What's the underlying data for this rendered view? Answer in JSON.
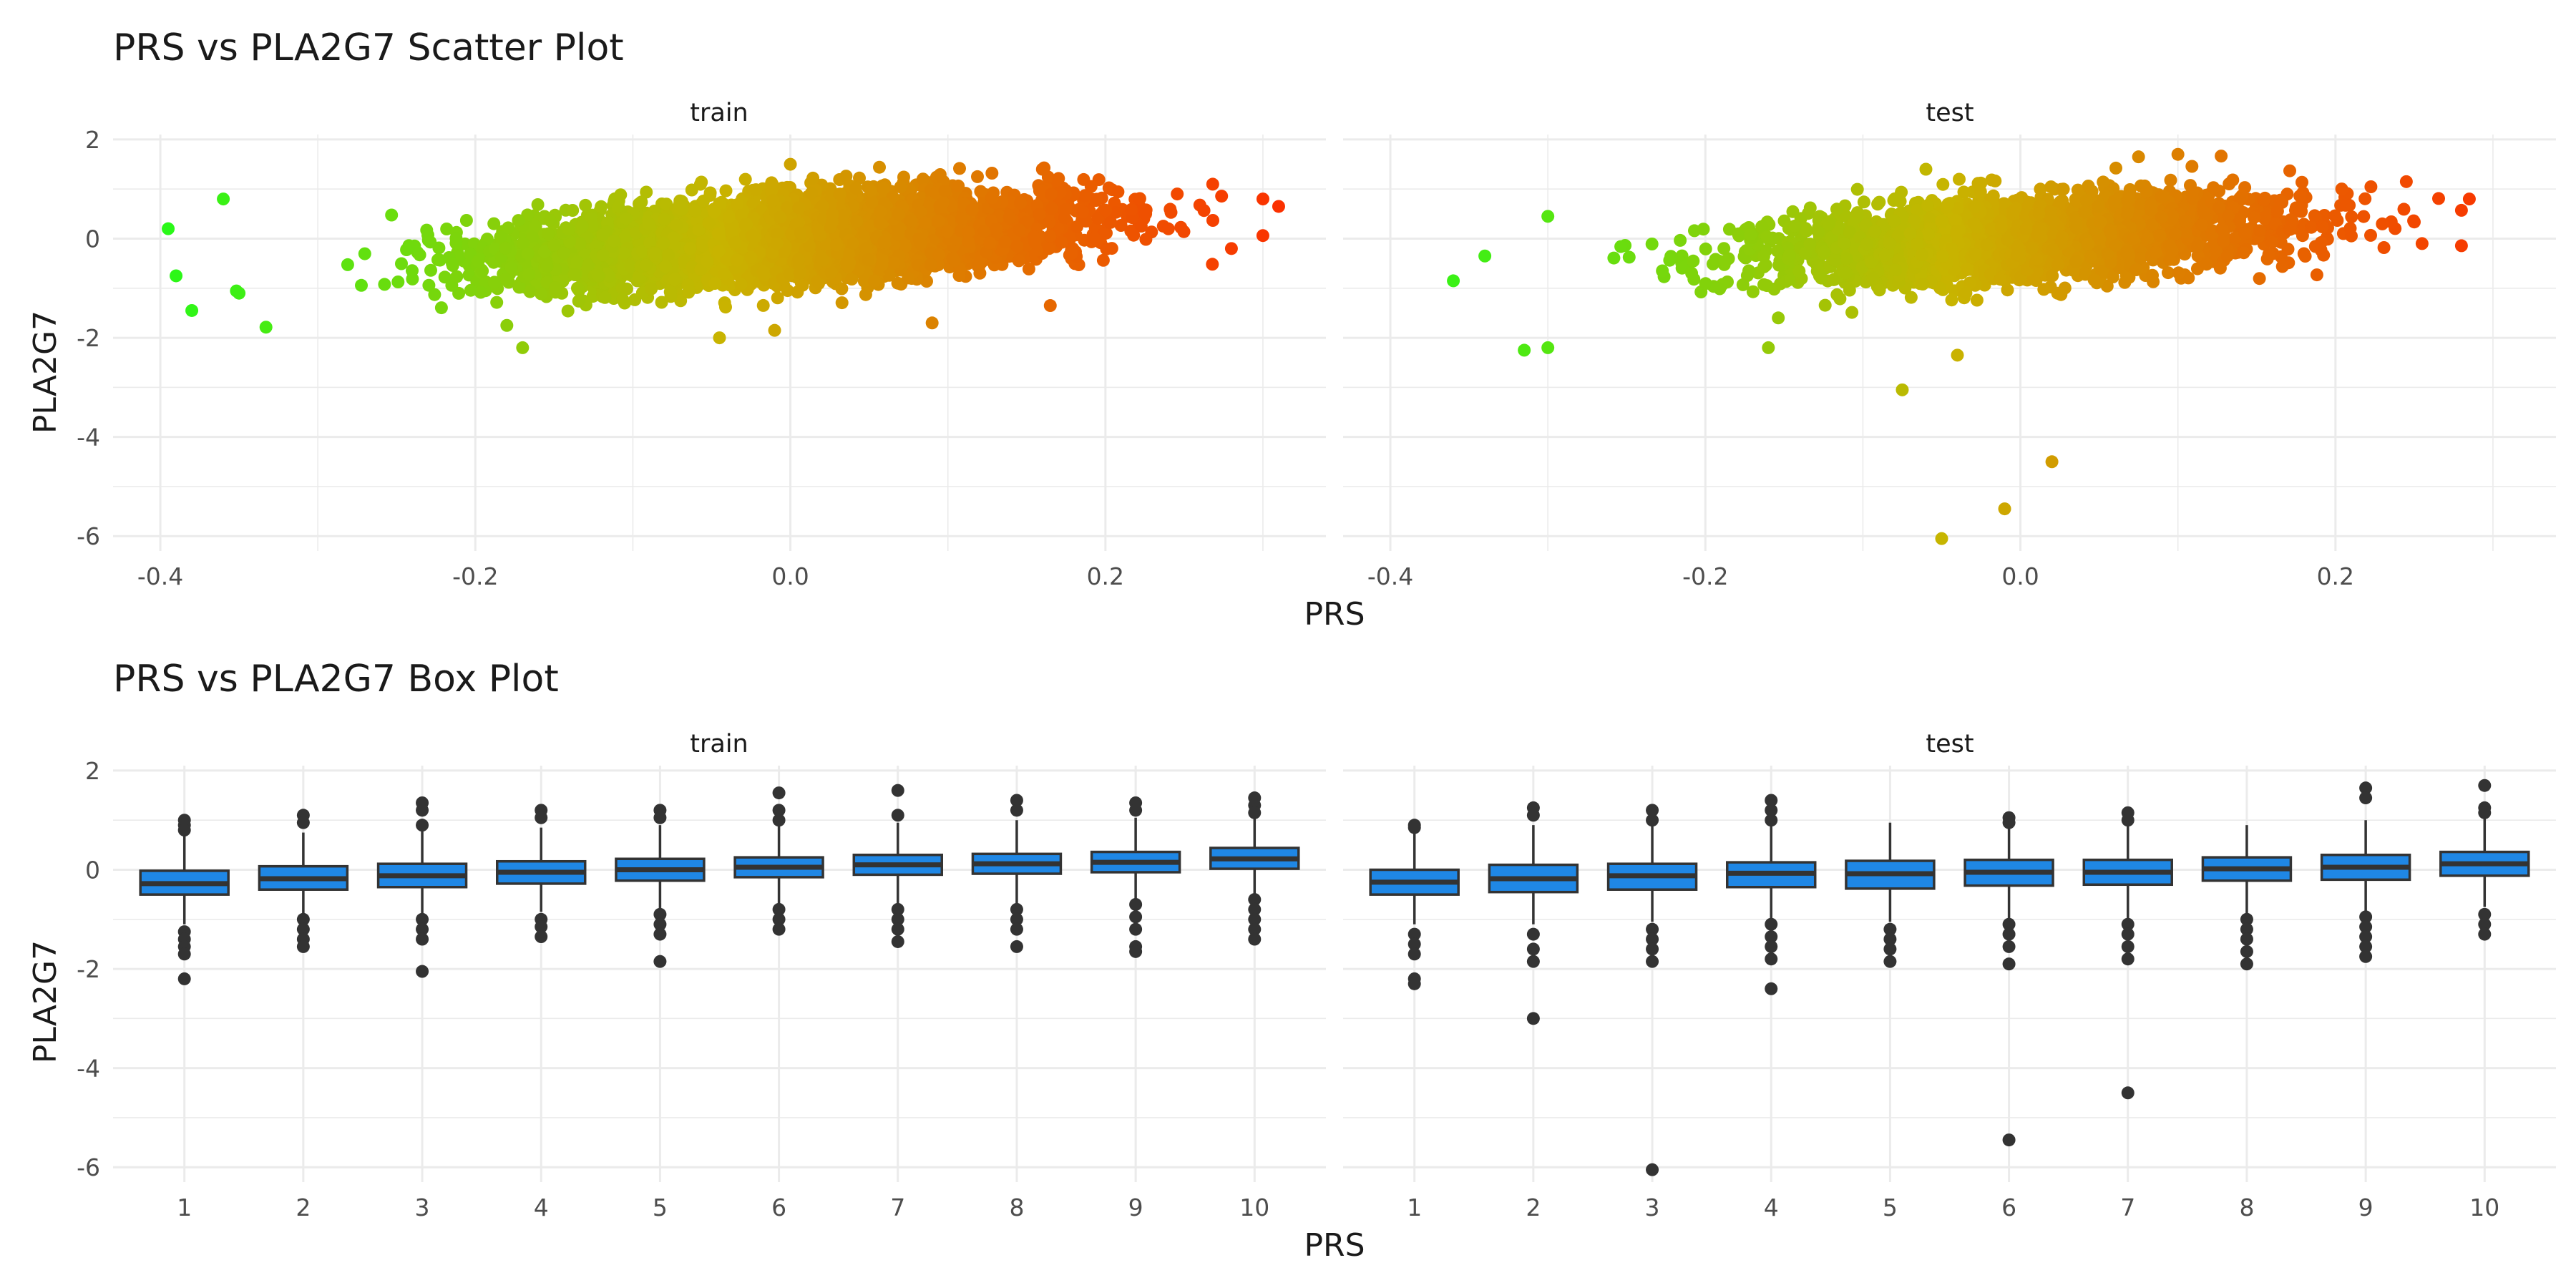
{
  "chart_data": [
    {
      "type": "scatter",
      "title": "PRS vs PLA2G7 Scatter Plot",
      "xlabel": "PRS",
      "ylabel": "PLA2G7",
      "facets": [
        "train",
        "test"
      ],
      "xlim": [
        -0.43,
        0.34
      ],
      "ylim": [
        -6.3,
        2.1
      ],
      "x_ticks": [
        -0.4,
        -0.2,
        0.0,
        0.2
      ],
      "x_tick_labels": [
        "-0.4",
        "-0.2",
        "0.0",
        "0.2"
      ],
      "y_ticks": [
        2,
        0,
        -2,
        -4,
        -6
      ],
      "y_tick_labels": [
        "2",
        "0",
        "-2",
        "-4",
        "-6"
      ],
      "color_scale": {
        "low": "#1aff1a",
        "mid": "#c8b400",
        "high": "#ff2600"
      },
      "grid": true,
      "legend": "none",
      "trend": {
        "intercept": 0.0,
        "slope": 2.0,
        "spread": 0.4
      },
      "series": [
        {
          "name": "train",
          "x_range": [
            -0.395,
            0.31
          ],
          "points": [
            {
              "x": -0.395,
              "y": 0.2
            },
            {
              "x": -0.39,
              "y": -0.75
            },
            {
              "x": -0.38,
              "y": -1.45
            },
            {
              "x": -0.36,
              "y": 0.8
            },
            {
              "x": -0.35,
              "y": -1.1
            },
            {
              "x": -0.18,
              "y": -1.75
            },
            {
              "x": -0.17,
              "y": -2.2
            },
            {
              "x": -0.045,
              "y": -2.0
            },
            {
              "x": 0.0,
              "y": 1.5
            },
            {
              "x": -0.01,
              "y": -1.85
            },
            {
              "x": 0.09,
              "y": -1.7
            },
            {
              "x": 0.165,
              "y": -1.35
            },
            {
              "x": 0.16,
              "y": 1.4
            },
            {
              "x": 0.28,
              "y": -0.2
            },
            {
              "x": 0.31,
              "y": 0.65
            },
            {
              "x": 0.3,
              "y": 0.8
            }
          ]
        },
        {
          "name": "test",
          "x_range": [
            -0.36,
            0.29
          ],
          "points": [
            {
              "x": -0.36,
              "y": -0.85
            },
            {
              "x": -0.34,
              "y": -0.35
            },
            {
              "x": -0.315,
              "y": -2.25
            },
            {
              "x": -0.3,
              "y": -2.2
            },
            {
              "x": -0.3,
              "y": 0.45
            },
            {
              "x": -0.16,
              "y": -2.2
            },
            {
              "x": -0.075,
              "y": -3.05
            },
            {
              "x": -0.05,
              "y": -6.05
            },
            {
              "x": -0.01,
              "y": -5.45
            },
            {
              "x": 0.02,
              "y": -4.5
            },
            {
              "x": -0.04,
              "y": -2.35
            },
            {
              "x": -0.06,
              "y": 1.4
            },
            {
              "x": 0.075,
              "y": 1.65
            },
            {
              "x": 0.1,
              "y": 1.7
            },
            {
              "x": 0.285,
              "y": 0.8
            },
            {
              "x": 0.255,
              "y": -0.1
            },
            {
              "x": 0.245,
              "y": 1.15
            }
          ]
        }
      ]
    },
    {
      "type": "box",
      "title": "PRS vs PLA2G7 Box Plot",
      "xlabel": "PRS",
      "ylabel": "PLA2G7",
      "facets": [
        "train",
        "test"
      ],
      "categories": [
        "1",
        "2",
        "3",
        "4",
        "5",
        "6",
        "7",
        "8",
        "9",
        "10"
      ],
      "ylim": [
        -6.3,
        2.1
      ],
      "y_ticks": [
        2,
        0,
        -2,
        -4,
        -6
      ],
      "y_tick_labels": [
        "2",
        "0",
        "-2",
        "-4",
        "-6"
      ],
      "box_color": "#1f87e5",
      "grid": true,
      "legend": "none",
      "series": [
        {
          "name": "train",
          "boxes": [
            {
              "q1": -0.5,
              "median": -0.28,
              "q3": -0.02,
              "lo": -1.1,
              "hi": 0.7,
              "outliers": [
                1.0,
                0.9,
                0.8,
                -1.25,
                -1.4,
                -1.55,
                -1.7,
                -2.2
              ]
            },
            {
              "q1": -0.4,
              "median": -0.18,
              "q3": 0.07,
              "lo": -0.95,
              "hi": 0.75,
              "outliers": [
                1.1,
                0.95,
                -1.0,
                -1.2,
                -1.4,
                -1.55
              ]
            },
            {
              "q1": -0.35,
              "median": -0.12,
              "q3": 0.12,
              "lo": -0.9,
              "hi": 0.8,
              "outliers": [
                1.35,
                1.2,
                0.9,
                -1.0,
                -1.2,
                -1.4,
                -2.05
              ]
            },
            {
              "q1": -0.28,
              "median": -0.05,
              "q3": 0.17,
              "lo": -0.85,
              "hi": 0.85,
              "outliers": [
                1.2,
                1.05,
                -1.0,
                -1.15,
                -1.35
              ]
            },
            {
              "q1": -0.22,
              "median": 0.0,
              "q3": 0.22,
              "lo": -0.8,
              "hi": 0.9,
              "outliers": [
                1.2,
                1.05,
                -0.9,
                -1.1,
                -1.3,
                -1.85
              ]
            },
            {
              "q1": -0.15,
              "median": 0.05,
              "q3": 0.25,
              "lo": -0.7,
              "hi": 0.9,
              "outliers": [
                1.55,
                1.2,
                1.0,
                -0.8,
                -1.0,
                -1.2
              ]
            },
            {
              "q1": -0.1,
              "median": 0.1,
              "q3": 0.3,
              "lo": -0.7,
              "hi": 0.95,
              "outliers": [
                1.6,
                1.1,
                -0.8,
                -1.0,
                -1.2,
                -1.45
              ]
            },
            {
              "q1": -0.08,
              "median": 0.12,
              "q3": 0.32,
              "lo": -0.7,
              "hi": 1.0,
              "outliers": [
                1.4,
                1.2,
                -0.8,
                -1.0,
                -1.2,
                -1.55
              ]
            },
            {
              "q1": -0.05,
              "median": 0.15,
              "q3": 0.36,
              "lo": -0.6,
              "hi": 1.05,
              "outliers": [
                1.35,
                1.2,
                -0.7,
                -0.95,
                -1.2,
                -1.55,
                -1.65
              ]
            },
            {
              "q1": 0.02,
              "median": 0.22,
              "q3": 0.44,
              "lo": -0.5,
              "hi": 1.1,
              "outliers": [
                1.45,
                1.3,
                1.15,
                -0.6,
                -0.8,
                -1.0,
                -1.2,
                -1.4
              ]
            }
          ]
        },
        {
          "name": "test",
          "boxes": [
            {
              "q1": -0.5,
              "median": -0.25,
              "q3": 0.0,
              "lo": -1.1,
              "hi": 0.75,
              "outliers": [
                0.9,
                0.85,
                -1.3,
                -1.5,
                -1.7,
                -2.2,
                -2.3
              ]
            },
            {
              "q1": -0.45,
              "median": -0.18,
              "q3": 0.1,
              "lo": -1.1,
              "hi": 0.9,
              "outliers": [
                1.25,
                1.1,
                -1.3,
                -1.6,
                -1.85,
                -3.0
              ]
            },
            {
              "q1": -0.4,
              "median": -0.12,
              "q3": 0.12,
              "lo": -1.05,
              "hi": 0.9,
              "outliers": [
                1.2,
                1.0,
                -1.2,
                -1.4,
                -1.6,
                -1.85,
                -6.05
              ]
            },
            {
              "q1": -0.35,
              "median": -0.07,
              "q3": 0.15,
              "lo": -1.0,
              "hi": 0.95,
              "outliers": [
                1.4,
                1.2,
                1.0,
                -1.1,
                -1.35,
                -1.55,
                -1.8,
                -2.4
              ]
            },
            {
              "q1": -0.38,
              "median": -0.08,
              "q3": 0.18,
              "lo": -1.05,
              "hi": 0.95,
              "outliers": [
                -1.2,
                -1.4,
                -1.6,
                -1.85
              ]
            },
            {
              "q1": -0.32,
              "median": -0.05,
              "q3": 0.2,
              "lo": -1.0,
              "hi": 0.95,
              "outliers": [
                1.05,
                0.95,
                -1.1,
                -1.3,
                -1.55,
                -1.9,
                -5.45
              ]
            },
            {
              "q1": -0.3,
              "median": -0.05,
              "q3": 0.2,
              "lo": -1.0,
              "hi": 0.95,
              "outliers": [
                1.15,
                1.0,
                -1.1,
                -1.3,
                -1.55,
                -1.8,
                -4.5
              ]
            },
            {
              "q1": -0.22,
              "median": 0.02,
              "q3": 0.25,
              "lo": -0.95,
              "hi": 0.9,
              "outliers": [
                -1.0,
                -1.2,
                -1.4,
                -1.65,
                -1.9
              ]
            },
            {
              "q1": -0.2,
              "median": 0.05,
              "q3": 0.3,
              "lo": -0.85,
              "hi": 1.0,
              "outliers": [
                1.65,
                1.45,
                -0.95,
                -1.15,
                -1.35,
                -1.55,
                -1.75
              ]
            },
            {
              "q1": -0.12,
              "median": 0.12,
              "q3": 0.36,
              "lo": -0.75,
              "hi": 1.05,
              "outliers": [
                1.7,
                1.25,
                1.15,
                -0.9,
                -1.1,
                -1.3
              ]
            }
          ]
        }
      ]
    }
  ]
}
